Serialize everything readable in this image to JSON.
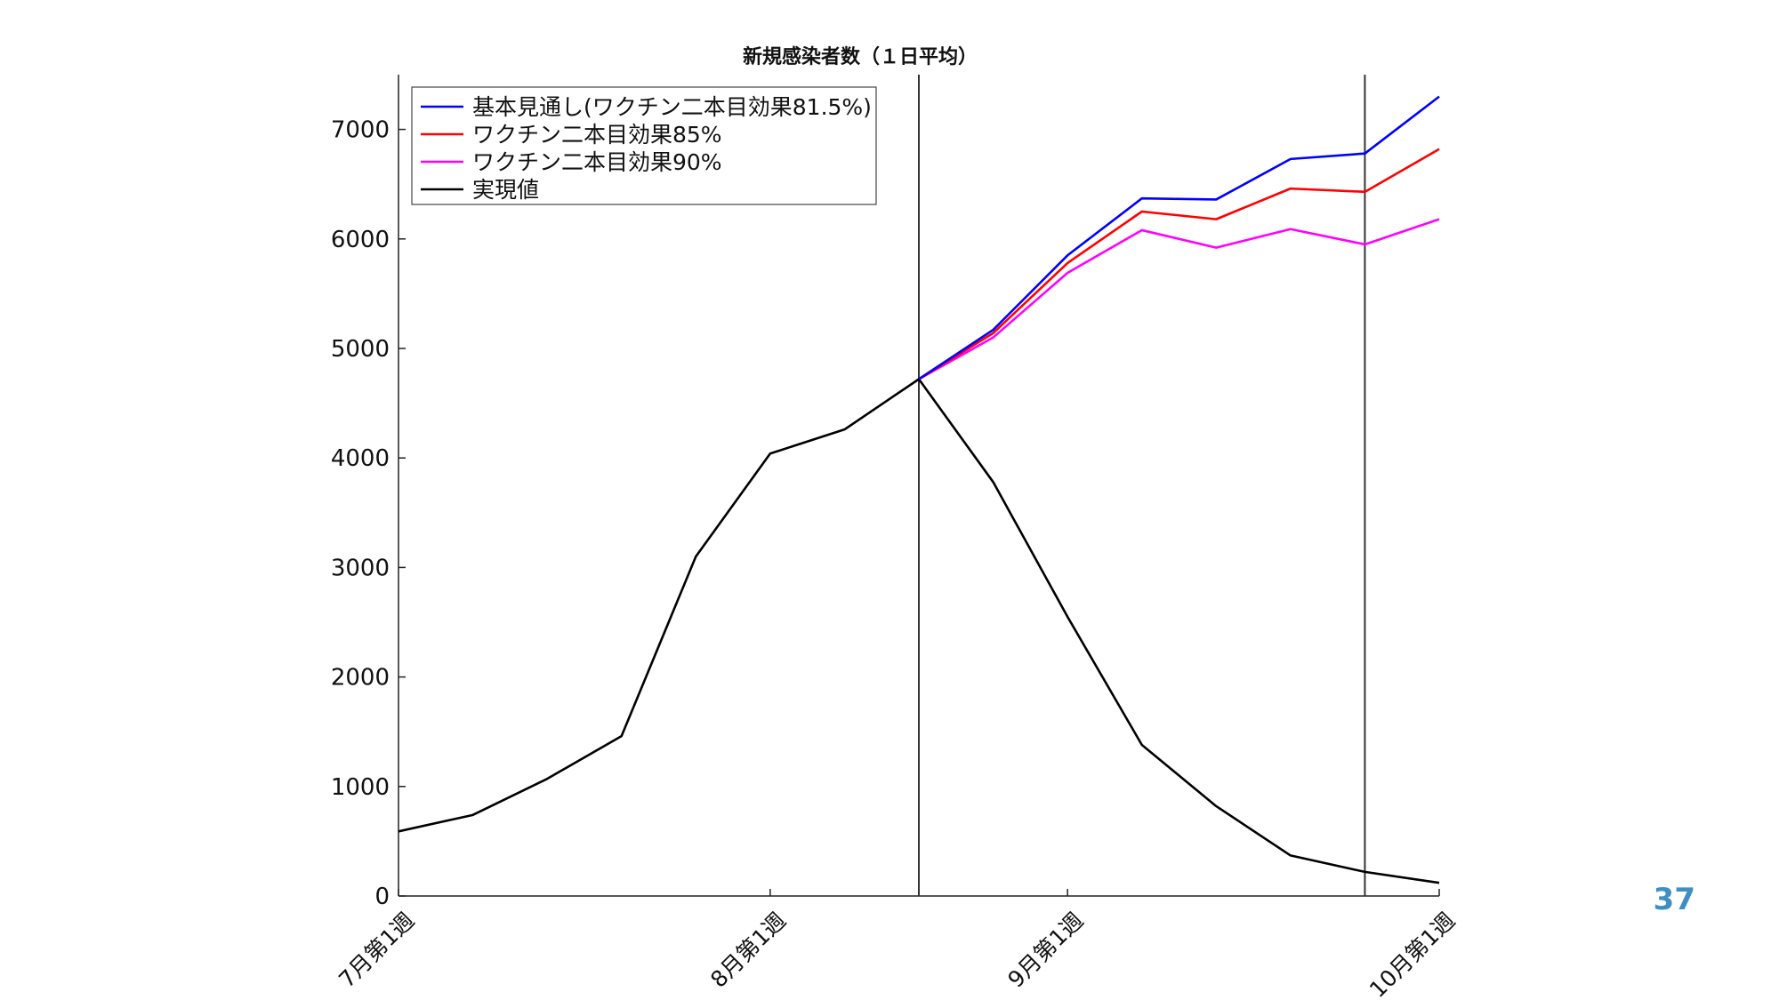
{
  "chart_data": {
    "type": "line",
    "title": "新規感染者数（１日平均）",
    "xlabel": "",
    "ylabel": "",
    "x_index_range": [
      0,
      14
    ],
    "ylim": [
      0,
      7500
    ],
    "yticks": [
      0,
      1000,
      2000,
      3000,
      4000,
      5000,
      6000,
      7000
    ],
    "xticks": [
      {
        "index": 0,
        "label": "7月第1週"
      },
      {
        "index": 5,
        "label": "8月第1週"
      },
      {
        "index": 9,
        "label": "9月第1週"
      },
      {
        "index": 14,
        "label": "10月第1週"
      }
    ],
    "vertical_lines": [
      7,
      13
    ],
    "grid": false,
    "legend_position": "top-left",
    "series": [
      {
        "name": "基本見通し(ワクチン二本目効果81.5%)",
        "color": "#0000ff",
        "x_index": [
          7,
          8,
          9,
          10,
          11,
          12,
          13,
          14
        ],
        "values": [
          4720,
          5170,
          5850,
          6370,
          6360,
          6730,
          6780,
          7300
        ]
      },
      {
        "name": "ワクチン二本目効果85%",
        "color": "#ff0000",
        "x_index": [
          7,
          8,
          9,
          10,
          11,
          12,
          13,
          14
        ],
        "values": [
          4720,
          5140,
          5780,
          6250,
          6180,
          6460,
          6430,
          6820
        ]
      },
      {
        "name": "ワクチン二本目効果90%",
        "color": "#ff00ff",
        "x_index": [
          7,
          8,
          9,
          10,
          11,
          12,
          13,
          14
        ],
        "values": [
          4720,
          5100,
          5690,
          6080,
          5920,
          6090,
          5950,
          6180
        ]
      },
      {
        "name": "実現値",
        "color": "#000000",
        "x_index": [
          0,
          1,
          2,
          3,
          4,
          5,
          6,
          7,
          8,
          9,
          10,
          11,
          12,
          13,
          14
        ],
        "values": [
          590,
          740,
          1070,
          1460,
          3100,
          4040,
          4260,
          4720,
          3780,
          2550,
          1380,
          820,
          370,
          220,
          120
        ]
      }
    ]
  },
  "slide_number": "37"
}
